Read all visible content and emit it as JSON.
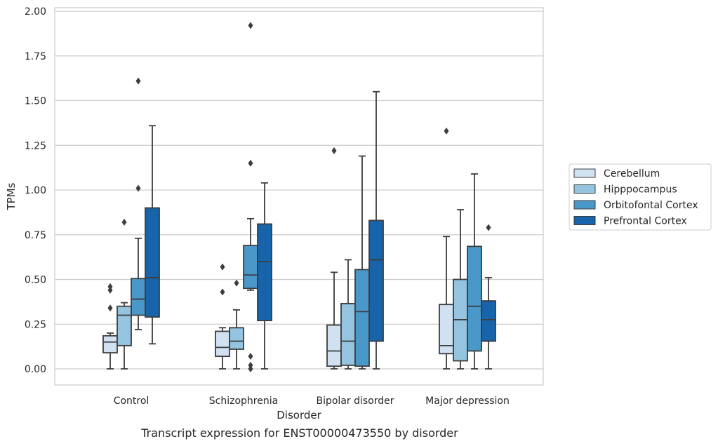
{
  "chart_data": {
    "type": "box",
    "title": "",
    "caption": "Transcript expression for ENST00000473550 by disorder",
    "xlabel": "Disorder",
    "ylabel": "TPMs",
    "ylim": [
      -0.09,
      2.02
    ],
    "yticks": [
      "0.00",
      "0.25",
      "0.50",
      "0.75",
      "1.00",
      "1.25",
      "1.50",
      "1.75",
      "2.00"
    ],
    "grid": "horizontal",
    "legend_placement": "right",
    "categories": [
      "Control",
      "Schizophrenia",
      "Bipolar disorder",
      "Major depression"
    ],
    "series": [
      {
        "name": "Cerebellum",
        "color": "#d0e1f2",
        "boxes": [
          {
            "whisker_low": 0.0,
            "q1": 0.09,
            "median": 0.15,
            "q3": 0.185,
            "whisker_high": 0.2,
            "outliers": [
              0.46,
              0.44,
              0.34
            ]
          },
          {
            "whisker_low": 0.0,
            "q1": 0.07,
            "median": 0.12,
            "q3": 0.21,
            "whisker_high": 0.23,
            "outliers": [
              0.57,
              0.43
            ]
          },
          {
            "whisker_low": 0.0,
            "q1": 0.015,
            "median": 0.1,
            "q3": 0.245,
            "whisker_high": 0.54,
            "outliers": [
              1.22
            ]
          },
          {
            "whisker_low": 0.0,
            "q1": 0.085,
            "median": 0.13,
            "q3": 0.36,
            "whisker_high": 0.74,
            "outliers": [
              1.33
            ]
          }
        ]
      },
      {
        "name": "Hipppocampus",
        "color": "#94c4df",
        "boxes": [
          {
            "whisker_low": 0.0,
            "q1": 0.13,
            "median": 0.3,
            "q3": 0.35,
            "whisker_high": 0.37,
            "outliers": [
              0.82
            ]
          },
          {
            "whisker_low": 0.0,
            "q1": 0.11,
            "median": 0.155,
            "q3": 0.23,
            "whisker_high": 0.33,
            "outliers": [
              0.48
            ]
          },
          {
            "whisker_low": 0.0,
            "q1": 0.02,
            "median": 0.155,
            "q3": 0.365,
            "whisker_high": 0.61,
            "outliers": []
          },
          {
            "whisker_low": 0.0,
            "q1": 0.045,
            "median": 0.275,
            "q3": 0.5,
            "whisker_high": 0.89,
            "outliers": []
          }
        ]
      },
      {
        "name": "Orbitofontal Cortex",
        "color": "#4a98c9",
        "boxes": [
          {
            "whisker_low": 0.22,
            "q1": 0.3,
            "median": 0.39,
            "q3": 0.505,
            "whisker_high": 0.73,
            "outliers": [
              1.61,
              1.01
            ]
          },
          {
            "whisker_low": 0.44,
            "q1": 0.45,
            "median": 0.525,
            "q3": 0.69,
            "whisker_high": 0.84,
            "outliers": [
              1.92,
              1.15,
              0.07,
              0.02,
              0.0
            ]
          },
          {
            "whisker_low": 0.0,
            "q1": 0.015,
            "median": 0.32,
            "q3": 0.555,
            "whisker_high": 1.19,
            "outliers": []
          },
          {
            "whisker_low": 0.0,
            "q1": 0.1,
            "median": 0.35,
            "q3": 0.685,
            "whisker_high": 1.09,
            "outliers": []
          }
        ]
      },
      {
        "name": "Prefrontal Cortex",
        "color": "#1764ab",
        "boxes": [
          {
            "whisker_low": 0.14,
            "q1": 0.29,
            "median": 0.51,
            "q3": 0.9,
            "whisker_high": 1.36,
            "outliers": []
          },
          {
            "whisker_low": 0.0,
            "q1": 0.27,
            "median": 0.6,
            "q3": 0.81,
            "whisker_high": 1.04,
            "outliers": []
          },
          {
            "whisker_low": 0.0,
            "q1": 0.155,
            "median": 0.61,
            "q3": 0.83,
            "whisker_high": 1.55,
            "outliers": []
          },
          {
            "whisker_low": 0.0,
            "q1": 0.155,
            "median": 0.275,
            "q3": 0.38,
            "whisker_high": 0.51,
            "outliers": [
              0.79
            ]
          }
        ]
      }
    ]
  }
}
